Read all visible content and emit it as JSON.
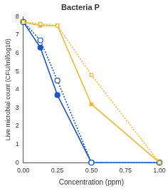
{
  "chart_data": {
    "type": "line",
    "title": "Bacteria P",
    "x_label": "Concentration (ppm)",
    "y_label": "Live microbial count (CFU/ml/log10)",
    "x": [
      0,
      0.125,
      0.25,
      0.5,
      1.0
    ],
    "series": [
      {
        "color": "#f5b731",
        "marker": "open_square",
        "line_style": "dotted",
        "values": [
          7.7,
          7.6,
          7.5,
          4.8,
          0
        ]
      },
      {
        "color": "#f5b731",
        "marker": "square",
        "line_style": "solid",
        "values": [
          7.7,
          7.5,
          7.5,
          3.2,
          0
        ]
      },
      {
        "color": "#1a56c4",
        "marker": "open_circle",
        "line_style": "dotted",
        "values": [
          7.7,
          6.7,
          4.5,
          0,
          0
        ]
      },
      {
        "color": "#1a56c4",
        "marker": "circle",
        "line_style": "solid",
        "values": [
          7.7,
          6.3,
          3.7,
          0,
          0
        ]
      }
    ],
    "xlim": [
      0,
      1.0
    ],
    "xticks": [
      {
        "value": 0,
        "label": "0.00"
      },
      {
        "value": 0.25,
        "label": "0.25"
      },
      {
        "value": 0.5,
        "label": "0.50"
      },
      {
        "value": 0.75,
        "label": "0.75"
      },
      {
        "value": 1.0,
        "label": "1.00"
      }
    ],
    "ylim": [
      0,
      8
    ],
    "yticks": [
      0,
      1,
      2,
      3,
      4,
      5,
      6,
      7,
      8
    ],
    "grid": false
  }
}
